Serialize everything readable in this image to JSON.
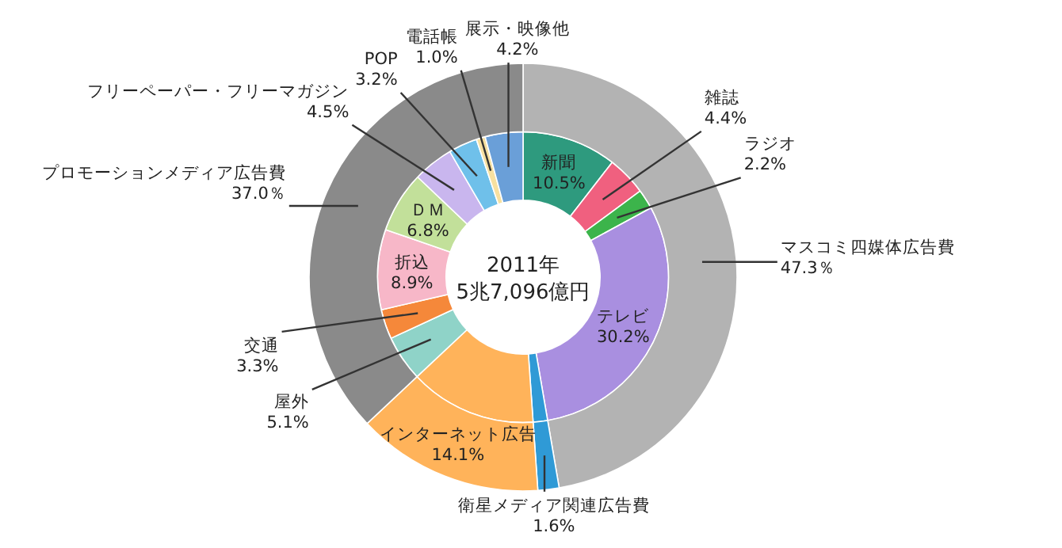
{
  "chart_data": [
    {
      "type": "donut",
      "annotations": [
        "2011年",
        "5兆7,096億円"
      ],
      "categories": [
        "新聞",
        "雑誌",
        "ラジオ",
        "テレビ",
        null,
        null,
        "屋外",
        "交通",
        "折込",
        "ＤＭ",
        "フリーペーパー・フリーマガジン",
        "POP",
        "電話帳",
        "展示・映像他"
      ],
      "values": [
        10.5,
        4.4,
        2.2,
        30.2,
        1.6,
        14.1,
        5.1,
        3.3,
        8.9,
        6.8,
        4.5,
        3.2,
        1.0,
        4.2
      ],
      "colors": [
        "#2e9a7e",
        "#f0607f",
        "#3cb44b",
        "#a98fe0",
        "#2f9ad6",
        "#ffb35a",
        "#8fd3c8",
        "#f5883a",
        "#f7b7c8",
        "#c2e09a",
        "#c9b6ee",
        "#6fc0ea",
        "#f7e0a0",
        "#6a9fd8"
      ],
      "value_labels": [
        "10.5%",
        "4.4%",
        "2.2%",
        "30.2%",
        null,
        null,
        "5.1%",
        "3.3%",
        "8.9%",
        "6.8%",
        "4.5%",
        "3.2%",
        "1.0%",
        "4.2%"
      ]
    },
    {
      "type": "donut",
      "categories": [
        "マスコミ四媒体広告費",
        "衛星メディア関連広告費",
        "インターネット広告",
        "プロモーションメディア広告費"
      ],
      "values": [
        47.3,
        1.6,
        14.1,
        37.0
      ],
      "colors": [
        "#b3b3b3",
        "#2f9ad6",
        "#ffb35a",
        "#8a8a8a"
      ],
      "value_labels": [
        "47.3％",
        "1.6%",
        "14.1%",
        "37.0％"
      ]
    }
  ]
}
